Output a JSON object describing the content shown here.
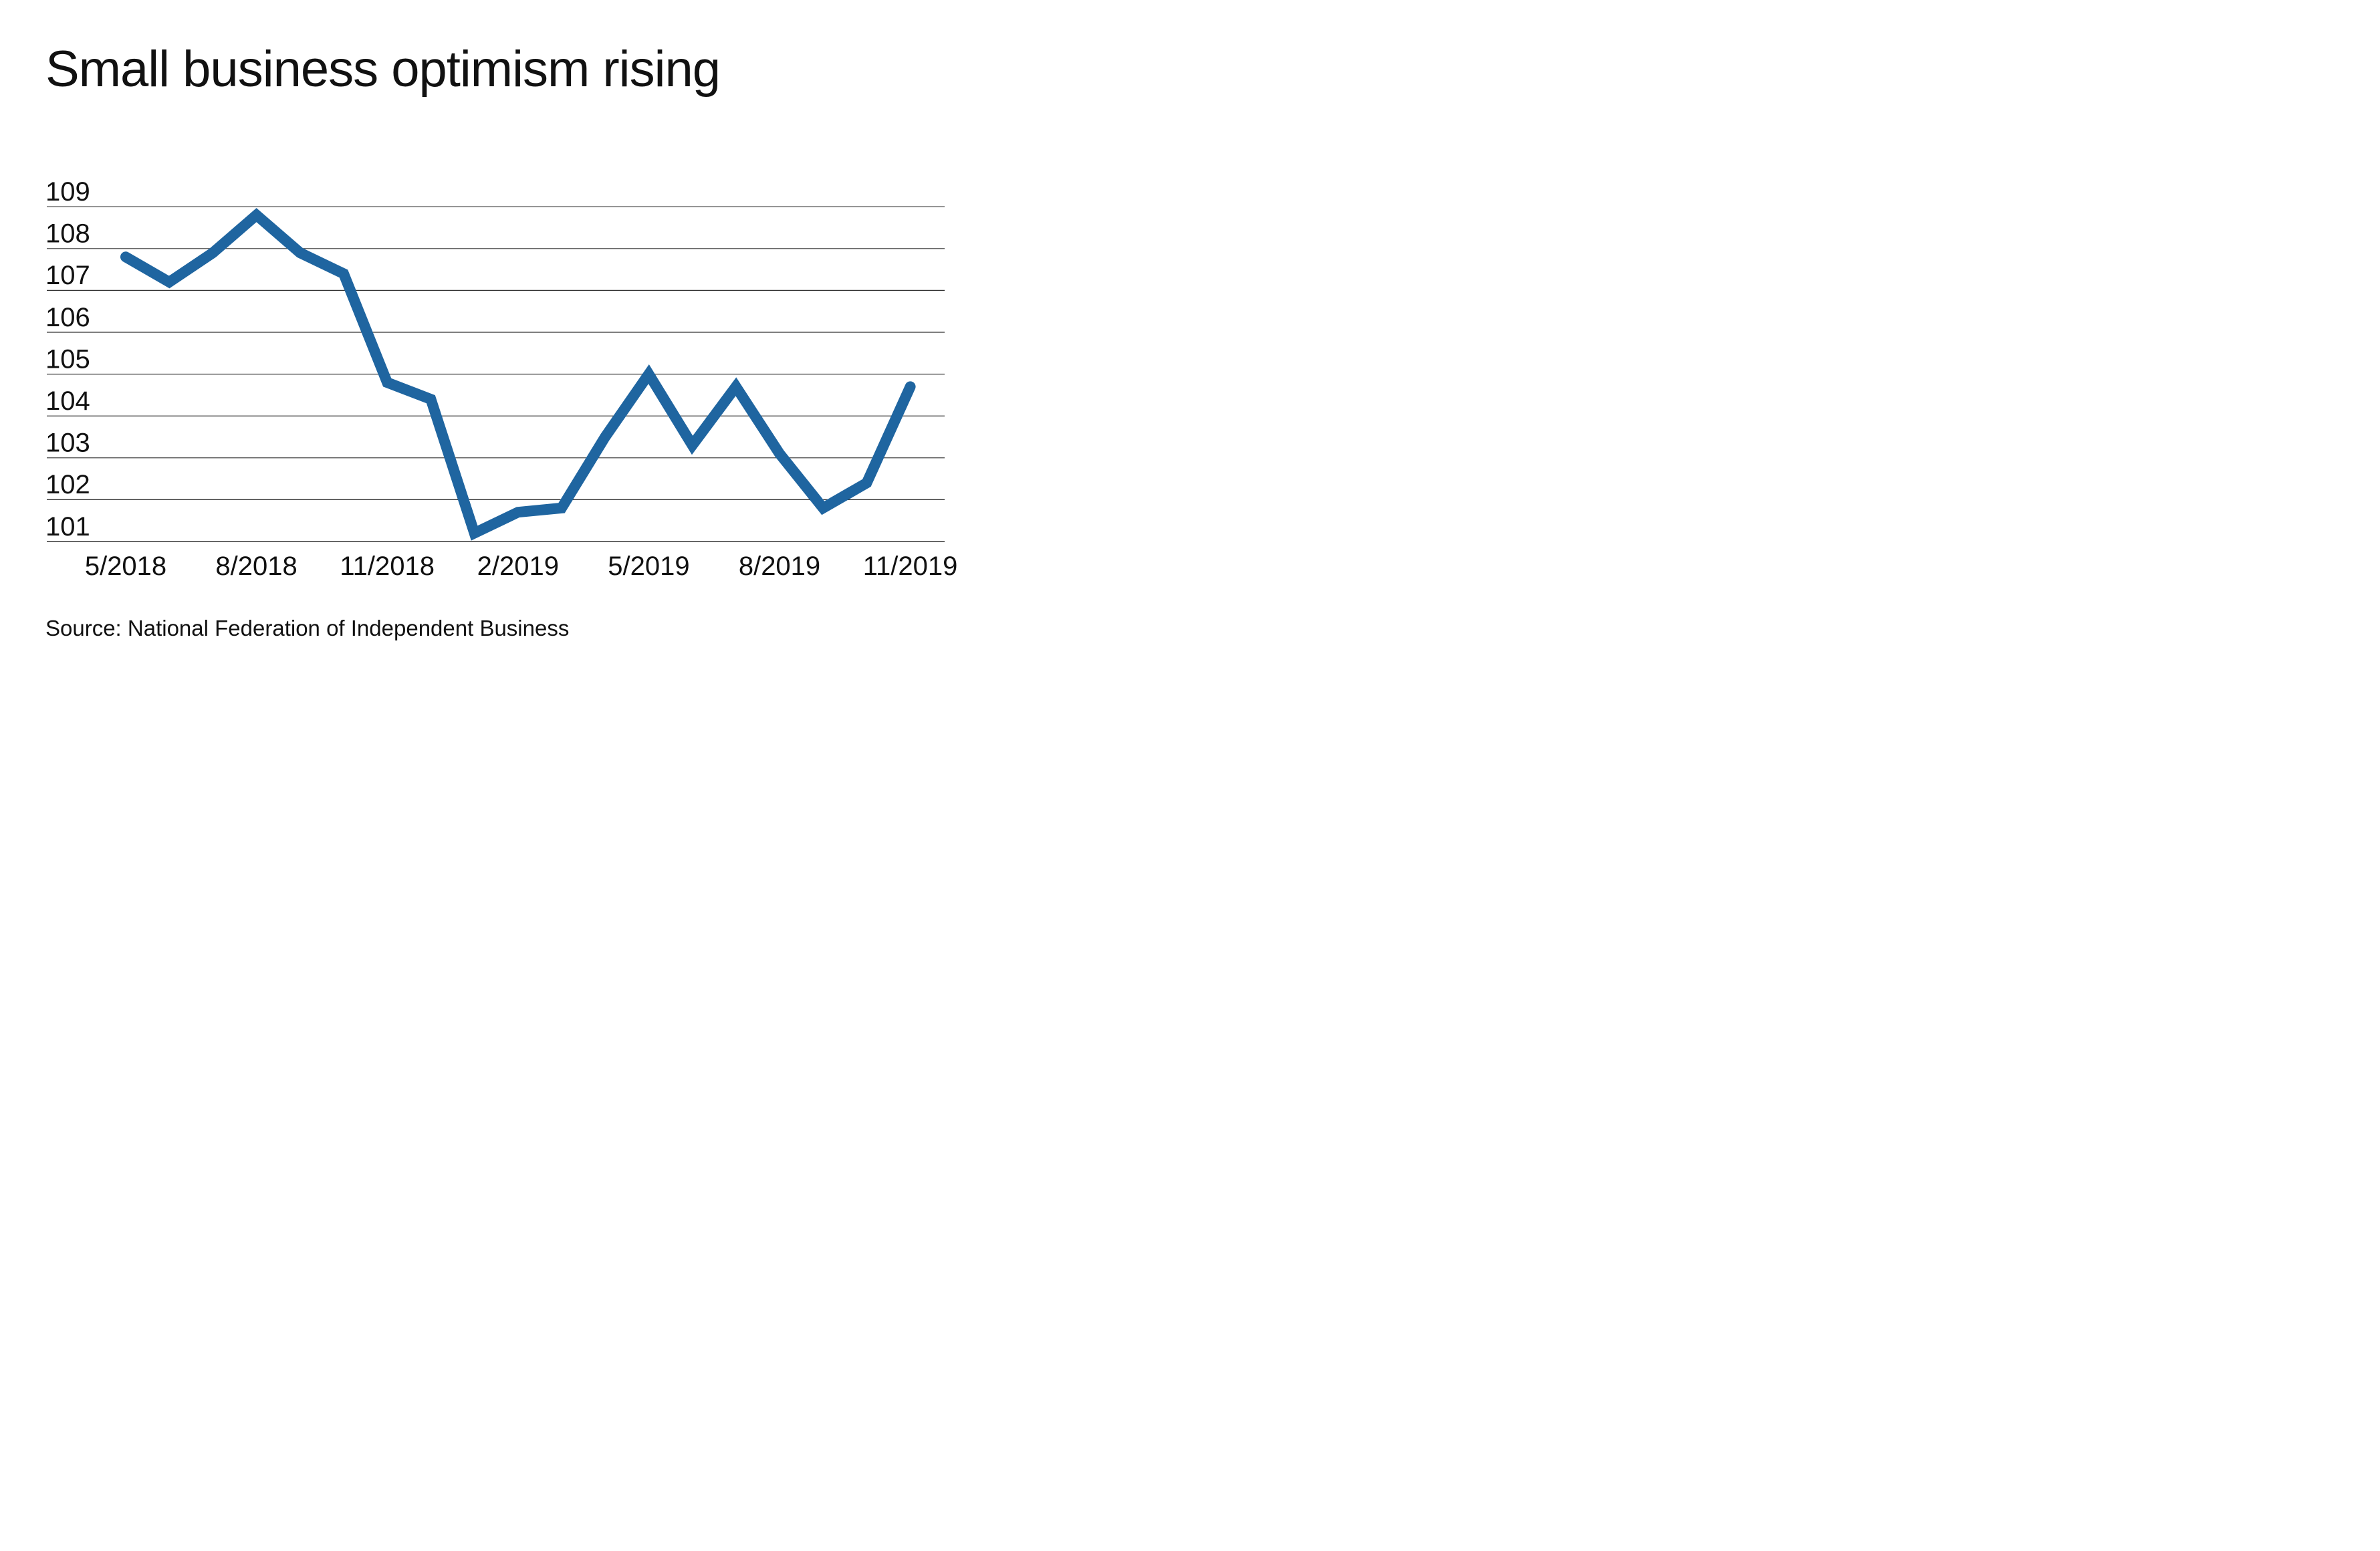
{
  "chart_data": {
    "type": "line",
    "title": "Small business optimism rising",
    "source": "Source: National Federation of Independent Business",
    "xlabel": "",
    "ylabel": "",
    "y_tick_labels": [
      "109",
      "108",
      "107",
      "106",
      "105",
      "104",
      "103",
      "102",
      "101"
    ],
    "x_tick_labels": [
      "5/2018",
      "8/2018",
      "11/2018",
      "2/2019",
      "5/2019",
      "8/2019",
      "11/2019"
    ],
    "x": [
      "5/2018",
      "6/2018",
      "7/2018",
      "8/2018",
      "9/2018",
      "10/2018",
      "11/2018",
      "12/2018",
      "1/2019",
      "2/2019",
      "3/2019",
      "4/2019",
      "5/2019",
      "6/2019",
      "7/2019",
      "8/2019",
      "9/2019",
      "10/2019",
      "11/2019"
    ],
    "series": [
      {
        "values": [
          107.8,
          107.2,
          107.9,
          108.8,
          107.9,
          107.4,
          104.8,
          104.4,
          101.2,
          101.7,
          101.8,
          103.5,
          105.0,
          103.3,
          104.7,
          103.1,
          101.8,
          102.4,
          104.7
        ]
      }
    ],
    "ylim": [
      101,
      109
    ],
    "grid": true,
    "legend": "none",
    "colors": {
      "line": "#1f65a0",
      "grid": "#333333",
      "text": "#111111"
    }
  }
}
